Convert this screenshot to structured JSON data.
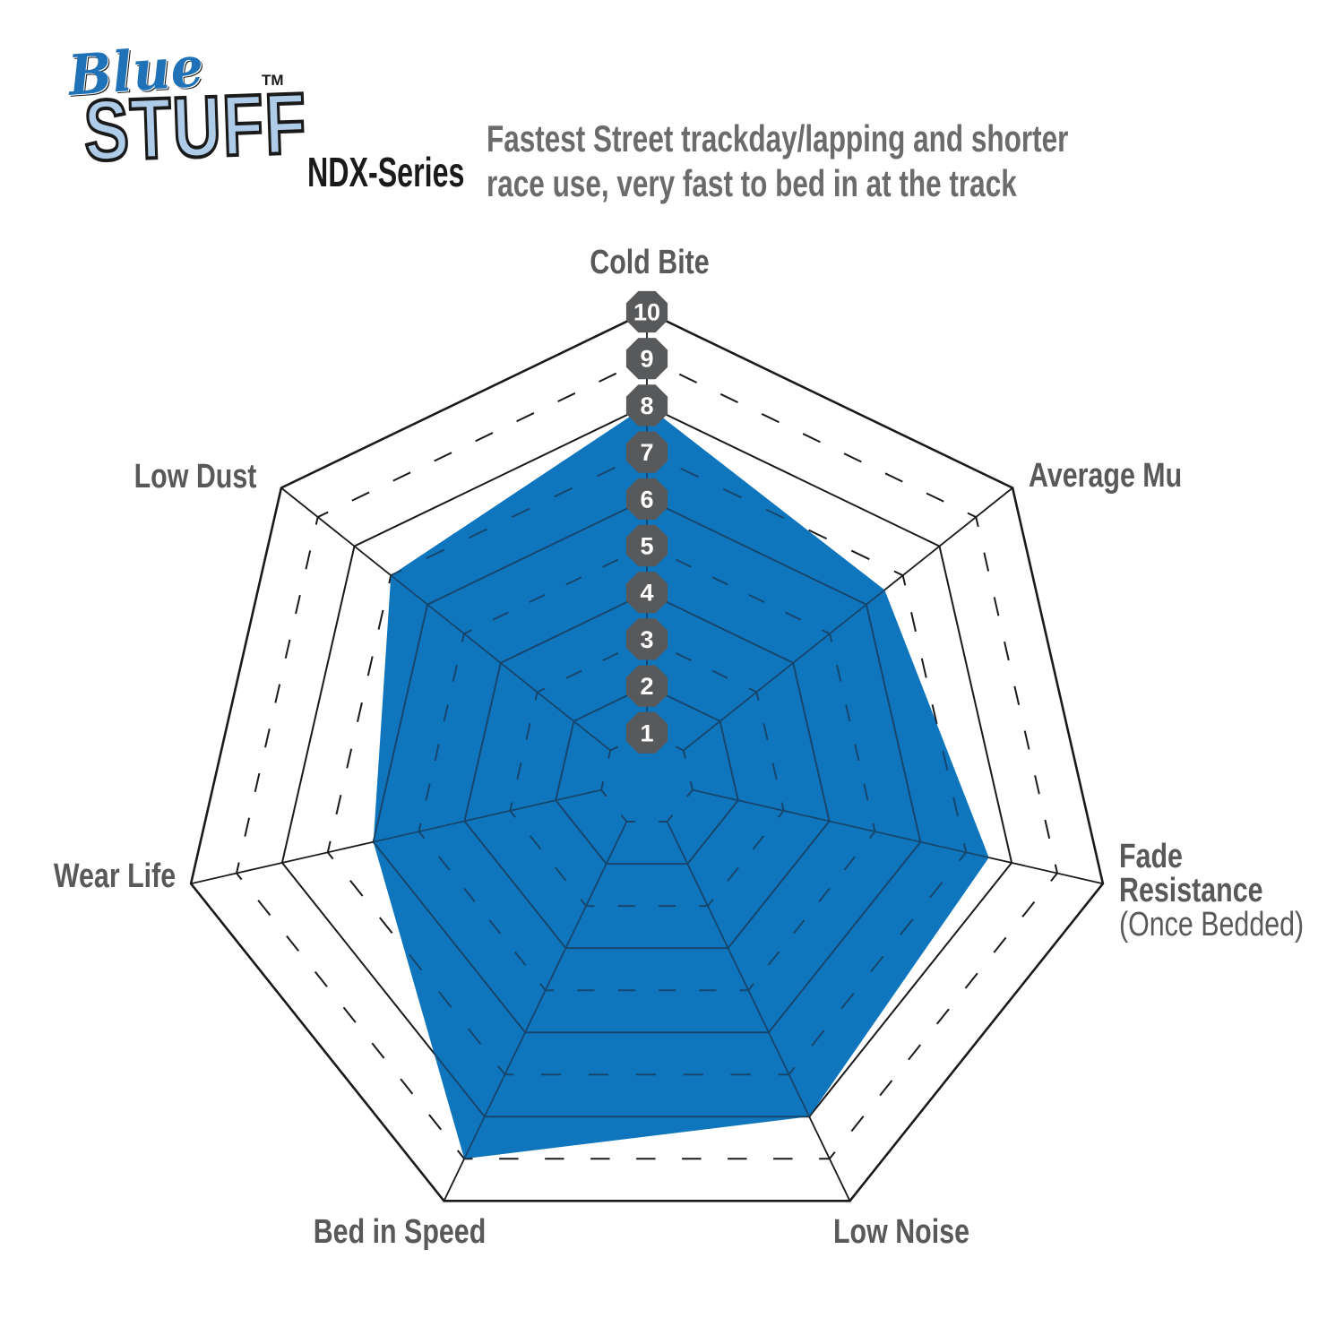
{
  "logo": {
    "word1": "Blue",
    "word2": "STUFF",
    "tm": "TM",
    "series": "NDX-Series"
  },
  "header": {
    "description_line1": "Fastest Street trackday/lapping and shorter",
    "description_line2": "race use, very fast to bed in at the track"
  },
  "chart_data": {
    "type": "radar",
    "categories": [
      "Cold Bite",
      "Average Mu",
      "Fade Resistance (Once Bedded)",
      "Low Noise",
      "Bed in Speed",
      "Wear Life",
      "Low Dust"
    ],
    "series": [
      {
        "name": "NDX-Series",
        "values": [
          8,
          6.5,
          7.5,
          8,
          9,
          6,
          7
        ]
      }
    ],
    "scale": {
      "min": 1,
      "max": 10,
      "tick_labels": [
        "1",
        "2",
        "3",
        "4",
        "5",
        "6",
        "7",
        "8",
        "9",
        "10"
      ]
    },
    "grid": {
      "solid_rings_at": [
        2,
        4,
        6,
        8,
        10
      ],
      "dashed_rings_at": [
        1,
        3,
        5,
        7,
        9
      ],
      "spokes": true
    },
    "legend": "none",
    "axis_labels": [
      {
        "lines": [
          "Cold Bite"
        ]
      },
      {
        "lines": [
          "Average Mu"
        ]
      },
      {
        "lines": [
          "Fade",
          "Resistance",
          "(Once Bedded)"
        ]
      },
      {
        "lines": [
          "Low Noise"
        ]
      },
      {
        "lines": [
          "Bed in Speed"
        ]
      },
      {
        "lines": [
          "Wear Life"
        ]
      },
      {
        "lines": [
          "Low Dust"
        ]
      }
    ],
    "colors": {
      "fill": "#0F76BE",
      "grid_line": "#1A1A1A",
      "grid_line_on_fill": "#17466D",
      "badge": "#58595B",
      "badge_text": "#FFFFFF",
      "axis_label_text": "#58595B"
    }
  }
}
